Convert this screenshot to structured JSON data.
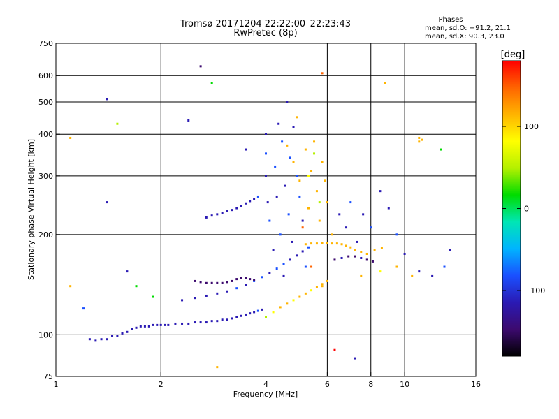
{
  "header": {
    "title": "Tromsø 20171204 22:22:00–22:23:43",
    "subtitle": "RwPretec (8p)"
  },
  "info_box": {
    "title": "Phases",
    "line_o": "mean, sd,O: −91.2, 21.1",
    "line_x": "mean, sd,X:  90.3, 23.0"
  },
  "colorbar": {
    "label": "[deg]",
    "ticks": [
      {
        "value": 100,
        "label": "100"
      },
      {
        "value": 0,
        "label": "0"
      },
      {
        "value": -100,
        "label": "−100"
      }
    ],
    "range": [
      -180,
      180
    ],
    "colormap": [
      "#000000",
      "#3c0a6e",
      "#2a1ab4",
      "#1a50ff",
      "#00b4ff",
      "#00e6b4",
      "#00dc00",
      "#b4f000",
      "#ffff00",
      "#ffb400",
      "#ff6400",
      "#ff0000"
    ]
  },
  "chart_data": {
    "type": "scatter",
    "xlabel": "Frequency [MHz]",
    "ylabel": "Stationary phase Virtual Height [km]",
    "xscale": "log",
    "yscale": "log",
    "xlim": [
      1,
      16
    ],
    "ylim": [
      75,
      750
    ],
    "xticks": [
      {
        "value": 1,
        "label": "1"
      },
      {
        "value": 2,
        "label": "2"
      },
      {
        "value": 4,
        "label": "4"
      },
      {
        "value": 6,
        "label": "6"
      },
      {
        "value": 8,
        "label": "8"
      },
      {
        "value": 10,
        "label": "10"
      },
      {
        "value": 16,
        "label": "16"
      }
    ],
    "xgrid": [
      2,
      4,
      6,
      8,
      10
    ],
    "yticks": [
      {
        "value": 75,
        "label": "75"
      },
      {
        "value": 100,
        "label": "100"
      },
      {
        "value": 200,
        "label": "200"
      },
      {
        "value": 300,
        "label": "300"
      },
      {
        "value": 400,
        "label": "400"
      },
      {
        "value": 500,
        "label": "500"
      },
      {
        "value": 600,
        "label": "600"
      },
      {
        "value": 750,
        "label": "750"
      }
    ],
    "ygrid": [
      100,
      200,
      300,
      400,
      500,
      600
    ],
    "grid": true,
    "color_variable": "phase [deg]",
    "points": [
      [
        1.25,
        97,
        -110
      ],
      [
        1.3,
        96,
        -120
      ],
      [
        1.35,
        97,
        -115
      ],
      [
        1.4,
        97,
        -105
      ],
      [
        1.45,
        99,
        -110
      ],
      [
        1.5,
        99,
        -100
      ],
      [
        1.55,
        101,
        -105
      ],
      [
        1.6,
        102,
        -110
      ],
      [
        1.65,
        104,
        -100
      ],
      [
        1.7,
        105,
        -108
      ],
      [
        1.75,
        106,
        -112
      ],
      [
        1.8,
        106,
        -105
      ],
      [
        1.85,
        106,
        -100
      ],
      [
        1.9,
        107,
        -110
      ],
      [
        1.95,
        107,
        -115
      ],
      [
        2.0,
        107,
        -110
      ],
      [
        2.05,
        107,
        -105
      ],
      [
        2.1,
        107,
        -100
      ],
      [
        2.2,
        108,
        -110
      ],
      [
        2.3,
        108,
        -105
      ],
      [
        2.4,
        108,
        -112
      ],
      [
        2.5,
        109,
        -100
      ],
      [
        2.6,
        109,
        -108
      ],
      [
        2.7,
        109,
        -110
      ],
      [
        2.8,
        110,
        -105
      ],
      [
        2.9,
        110,
        -100
      ],
      [
        3.0,
        111,
        -110
      ],
      [
        3.1,
        111,
        -108
      ],
      [
        3.2,
        112,
        -105
      ],
      [
        3.3,
        113,
        -100
      ],
      [
        3.4,
        114,
        -110
      ],
      [
        3.5,
        115,
        -108
      ],
      [
        3.6,
        116,
        -100
      ],
      [
        3.7,
        117,
        -105
      ],
      [
        3.8,
        118,
        -95
      ],
      [
        3.9,
        119,
        -100
      ],
      [
        2.3,
        127,
        -120
      ],
      [
        2.5,
        129,
        -115
      ],
      [
        2.7,
        131,
        -110
      ],
      [
        2.9,
        133,
        -105
      ],
      [
        3.1,
        135,
        -100
      ],
      [
        3.3,
        138,
        -95
      ],
      [
        3.5,
        141,
        -100
      ],
      [
        3.7,
        145,
        -90
      ],
      [
        3.9,
        149,
        -95
      ],
      [
        4.1,
        153,
        -100
      ],
      [
        4.3,
        158,
        -90
      ],
      [
        4.5,
        163,
        -95
      ],
      [
        4.7,
        168,
        -100
      ],
      [
        4.9,
        173,
        -105
      ],
      [
        5.1,
        178,
        -100
      ],
      [
        5.3,
        183,
        -95
      ],
      [
        4.0,
        113,
        40
      ],
      [
        4.2,
        117,
        80
      ],
      [
        4.4,
        121,
        110
      ],
      [
        4.6,
        124,
        130
      ],
      [
        4.8,
        127,
        90
      ],
      [
        5.0,
        130,
        100
      ],
      [
        5.2,
        133,
        110
      ],
      [
        5.4,
        136,
        95
      ],
      [
        5.6,
        139,
        105
      ],
      [
        5.8,
        142,
        100
      ],
      [
        6.0,
        145,
        110
      ],
      [
        2.5,
        145,
        -150
      ],
      [
        2.6,
        144,
        -145
      ],
      [
        2.7,
        143,
        -150
      ],
      [
        2.8,
        143,
        -140
      ],
      [
        2.9,
        143,
        -150
      ],
      [
        3.0,
        143,
        -145
      ],
      [
        3.1,
        144,
        -140
      ],
      [
        3.2,
        145,
        -150
      ],
      [
        3.3,
        147,
        -145
      ],
      [
        3.4,
        148,
        -140
      ],
      [
        3.5,
        148,
        -145
      ],
      [
        3.6,
        147,
        -135
      ],
      [
        3.7,
        146,
        -140
      ],
      [
        2.7,
        225,
        -110
      ],
      [
        2.8,
        228,
        -100
      ],
      [
        2.9,
        230,
        -108
      ],
      [
        3.0,
        232,
        -112
      ],
      [
        3.1,
        235,
        -100
      ],
      [
        3.2,
        237,
        -105
      ],
      [
        3.3,
        240,
        -110
      ],
      [
        3.4,
        244,
        -100
      ],
      [
        3.5,
        248,
        -108
      ],
      [
        3.6,
        252,
        -100
      ],
      [
        3.7,
        255,
        -105
      ],
      [
        3.8,
        260,
        -95
      ],
      [
        5.2,
        187,
        110
      ],
      [
        5.4,
        188,
        115
      ],
      [
        5.6,
        188,
        105
      ],
      [
        5.8,
        189,
        110
      ],
      [
        6.0,
        189,
        120
      ],
      [
        6.2,
        188,
        110
      ],
      [
        6.4,
        188,
        105
      ],
      [
        6.6,
        187,
        115
      ],
      [
        6.8,
        185,
        110
      ],
      [
        7.0,
        183,
        105
      ],
      [
        7.2,
        180,
        110
      ],
      [
        7.5,
        177,
        115
      ],
      [
        7.8,
        175,
        110
      ],
      [
        8.2,
        180,
        105
      ],
      [
        8.6,
        182,
        115
      ],
      [
        6.3,
        168,
        -140
      ],
      [
        6.6,
        170,
        -130
      ],
      [
        6.9,
        172,
        -140
      ],
      [
        7.2,
        172,
        -135
      ],
      [
        7.5,
        170,
        -130
      ],
      [
        7.8,
        168,
        -140
      ],
      [
        8.1,
        166,
        -135
      ],
      [
        4.0,
        400,
        -100
      ],
      [
        4.0,
        350,
        -90
      ],
      [
        4.0,
        300,
        -100
      ],
      [
        4.05,
        250,
        -110
      ],
      [
        4.1,
        220,
        -95
      ],
      [
        4.2,
        180,
        -100
      ],
      [
        4.25,
        320,
        -90
      ],
      [
        4.3,
        260,
        -100
      ],
      [
        4.35,
        430,
        -110
      ],
      [
        4.4,
        200,
        -90
      ],
      [
        4.45,
        380,
        -95
      ],
      [
        4.5,
        150,
        -100
      ],
      [
        4.55,
        280,
        -105
      ],
      [
        4.6,
        500,
        -100
      ],
      [
        4.65,
        230,
        -90
      ],
      [
        4.7,
        340,
        -85
      ],
      [
        4.75,
        190,
        -100
      ],
      [
        4.8,
        420,
        -110
      ],
      [
        4.9,
        300,
        -95
      ],
      [
        5.0,
        260,
        -90
      ],
      [
        5.1,
        220,
        -100
      ],
      [
        5.2,
        160,
        -95
      ],
      [
        4.6,
        370,
        100
      ],
      [
        4.8,
        330,
        110
      ],
      [
        5.0,
        290,
        115
      ],
      [
        5.2,
        360,
        100
      ],
      [
        5.3,
        240,
        120
      ],
      [
        5.4,
        310,
        110
      ],
      [
        5.5,
        380,
        115
      ],
      [
        5.6,
        270,
        105
      ],
      [
        5.7,
        220,
        110
      ],
      [
        5.8,
        330,
        100
      ],
      [
        5.9,
        290,
        115
      ],
      [
        6.0,
        250,
        110
      ],
      [
        5.5,
        350,
        60
      ],
      [
        5.3,
        300,
        70
      ],
      [
        5.7,
        250,
        65
      ],
      [
        4.9,
        450,
        130
      ],
      [
        5.1,
        210,
        140
      ],
      [
        5.4,
        160,
        135
      ],
      [
        5.8,
        140,
        120
      ],
      [
        6.2,
        200,
        125
      ],
      [
        6.5,
        230,
        -100
      ],
      [
        6.8,
        210,
        -110
      ],
      [
        7.0,
        250,
        -95
      ],
      [
        7.3,
        190,
        -105
      ],
      [
        7.6,
        230,
        -100
      ],
      [
        8.0,
        210,
        -90
      ],
      [
        8.5,
        270,
        -100
      ],
      [
        9.0,
        240,
        -110
      ],
      [
        9.5,
        200,
        -95
      ],
      [
        10.0,
        175,
        -100
      ],
      [
        11.0,
        155,
        -110
      ],
      [
        12.0,
        150,
        -100
      ],
      [
        13.0,
        160,
        -95
      ],
      [
        11.0,
        380,
        120
      ],
      [
        11.0,
        390,
        130
      ],
      [
        11.2,
        385,
        125
      ],
      [
        7.5,
        150,
        100
      ],
      [
        8.5,
        155,
        95
      ],
      [
        9.5,
        160,
        110
      ],
      [
        10.5,
        150,
        120
      ],
      [
        2.4,
        440,
        -120
      ],
      [
        2.6,
        640,
        -150
      ],
      [
        3.5,
        360,
        -110
      ],
      [
        1.1,
        390,
        100
      ],
      [
        1.4,
        510,
        -100
      ],
      [
        1.5,
        430,
        40
      ],
      [
        1.4,
        250,
        -110
      ],
      [
        1.6,
        155,
        -110
      ],
      [
        1.7,
        140,
        20
      ],
      [
        2.8,
        570,
        20
      ],
      [
        1.1,
        140,
        120
      ],
      [
        1.2,
        120,
        -80
      ],
      [
        1.9,
        130,
        20
      ],
      [
        2.9,
        80,
        110
      ],
      [
        5.8,
        610,
        160
      ],
      [
        6.3,
        90,
        170
      ],
      [
        7.2,
        85,
        -110
      ],
      [
        8.8,
        570,
        110
      ],
      [
        12.7,
        360,
        30
      ],
      [
        13.5,
        180,
        -120
      ]
    ]
  }
}
